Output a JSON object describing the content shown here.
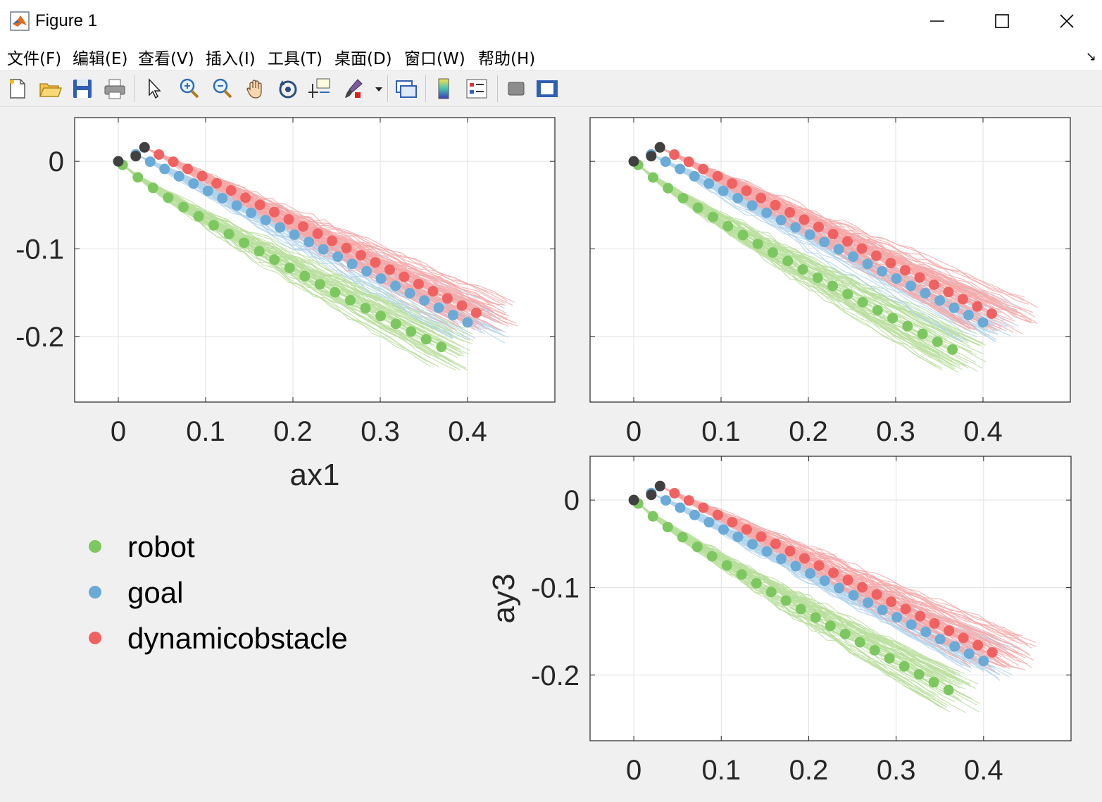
{
  "window": {
    "title": "Figure 1",
    "app_icon": "matlab-icon"
  },
  "menu": [
    {
      "label": "文件(F)",
      "underline": "F"
    },
    {
      "label": "编辑(E)",
      "underline": "E"
    },
    {
      "label": "查看(V)",
      "underline": "V"
    },
    {
      "label": "插入(I)",
      "underline": "I"
    },
    {
      "label": "工具(T)",
      "underline": "T"
    },
    {
      "label": "桌面(D)",
      "underline": "D"
    },
    {
      "label": "窗口(W)",
      "underline": "W"
    },
    {
      "label": "帮助(H)",
      "underline": "H"
    }
  ],
  "toolbar": {
    "icons": [
      "new-figure-icon",
      "open-file-icon",
      "save-icon",
      "print-icon",
      "pointer-icon",
      "zoom-in-icon",
      "zoom-out-icon",
      "pan-icon",
      "rotate-3d-icon",
      "data-cursor-icon",
      "brush-icon",
      "link-plot-icon",
      "colorbar-icon",
      "legend-icon",
      "hide-plot-tools-icon",
      "show-plot-tools-icon"
    ]
  },
  "colors": {
    "robot": "#7dc760",
    "goal": "#6aaad6",
    "dynamicobstacle": "#f06262",
    "start": "#404040",
    "robot_light": "#b9df9e",
    "goal_light": "#b3d3ea",
    "obstacle_light": "#f6a9a9",
    "grid": "#e2e2e2"
  },
  "chart_data": [
    {
      "type": "line",
      "panel": "top-left",
      "xlabel": "ax1",
      "ylabel": "",
      "xlim": [
        -0.05,
        0.5
      ],
      "ylim": [
        -0.275,
        0.05
      ],
      "xticks": [
        "0",
        "0.1",
        "0.2",
        "0.3",
        "0.4"
      ],
      "yticks": [
        "0",
        "-0.1",
        "-0.2"
      ],
      "grid": true,
      "series": [
        {
          "name": "robot",
          "x": [
            0.005,
            0.37
          ],
          "y": [
            -0.004,
            -0.212
          ],
          "points": 22
        },
        {
          "name": "goal",
          "x": [
            0.02,
            0.4
          ],
          "y": [
            0.008,
            -0.184
          ],
          "points": 24
        },
        {
          "name": "dynamicobstacle",
          "x": [
            0.03,
            0.41
          ],
          "y": [
            0.016,
            -0.173
          ],
          "points": 24
        }
      ],
      "start_points": [
        [
          0.0,
          0.0
        ],
        [
          0.02,
          0.006
        ],
        [
          0.03,
          0.016
        ]
      ]
    },
    {
      "type": "line",
      "panel": "top-right",
      "xlabel": "",
      "ylabel": "",
      "xlim": [
        -0.05,
        0.5
      ],
      "ylim": [
        -0.275,
        0.05
      ],
      "xticks": [
        "0",
        "0.1",
        "0.2",
        "0.3",
        "0.4"
      ],
      "yticks": [],
      "grid": true,
      "series": [
        {
          "name": "robot",
          "x": [
            0.005,
            0.365
          ],
          "y": [
            -0.004,
            -0.215
          ],
          "points": 22
        },
        {
          "name": "goal",
          "x": [
            0.02,
            0.4
          ],
          "y": [
            0.008,
            -0.184
          ],
          "points": 24
        },
        {
          "name": "dynamicobstacle",
          "x": [
            0.03,
            0.41
          ],
          "y": [
            0.016,
            -0.174
          ],
          "points": 24
        }
      ],
      "start_points": [
        [
          0.0,
          0.0
        ],
        [
          0.02,
          0.006
        ],
        [
          0.03,
          0.016
        ]
      ]
    },
    {
      "type": "line",
      "panel": "bottom-right",
      "xlabel": "",
      "ylabel": "ay3",
      "xlim": [
        -0.05,
        0.5
      ],
      "ylim": [
        -0.275,
        0.05
      ],
      "xticks": [
        "0",
        "0.1",
        "0.2",
        "0.3",
        "0.4"
      ],
      "yticks": [
        "0",
        "-0.1",
        "-0.2"
      ],
      "grid": true,
      "series": [
        {
          "name": "robot",
          "x": [
            0.005,
            0.36
          ],
          "y": [
            -0.004,
            -0.217
          ],
          "points": 22
        },
        {
          "name": "goal",
          "x": [
            0.02,
            0.4
          ],
          "y": [
            0.008,
            -0.184
          ],
          "points": 24
        },
        {
          "name": "dynamicobstacle",
          "x": [
            0.03,
            0.41
          ],
          "y": [
            0.016,
            -0.174
          ],
          "points": 24
        }
      ],
      "start_points": [
        [
          0.0,
          0.0
        ],
        [
          0.02,
          0.006
        ],
        [
          0.03,
          0.016
        ]
      ]
    }
  ],
  "legend": {
    "placement": "bottom-left",
    "entries": [
      {
        "label": "robot",
        "color": "#7dc760"
      },
      {
        "label": "goal",
        "color": "#6aaad6"
      },
      {
        "label": "dynamicobstacle",
        "color": "#f06262"
      }
    ]
  }
}
